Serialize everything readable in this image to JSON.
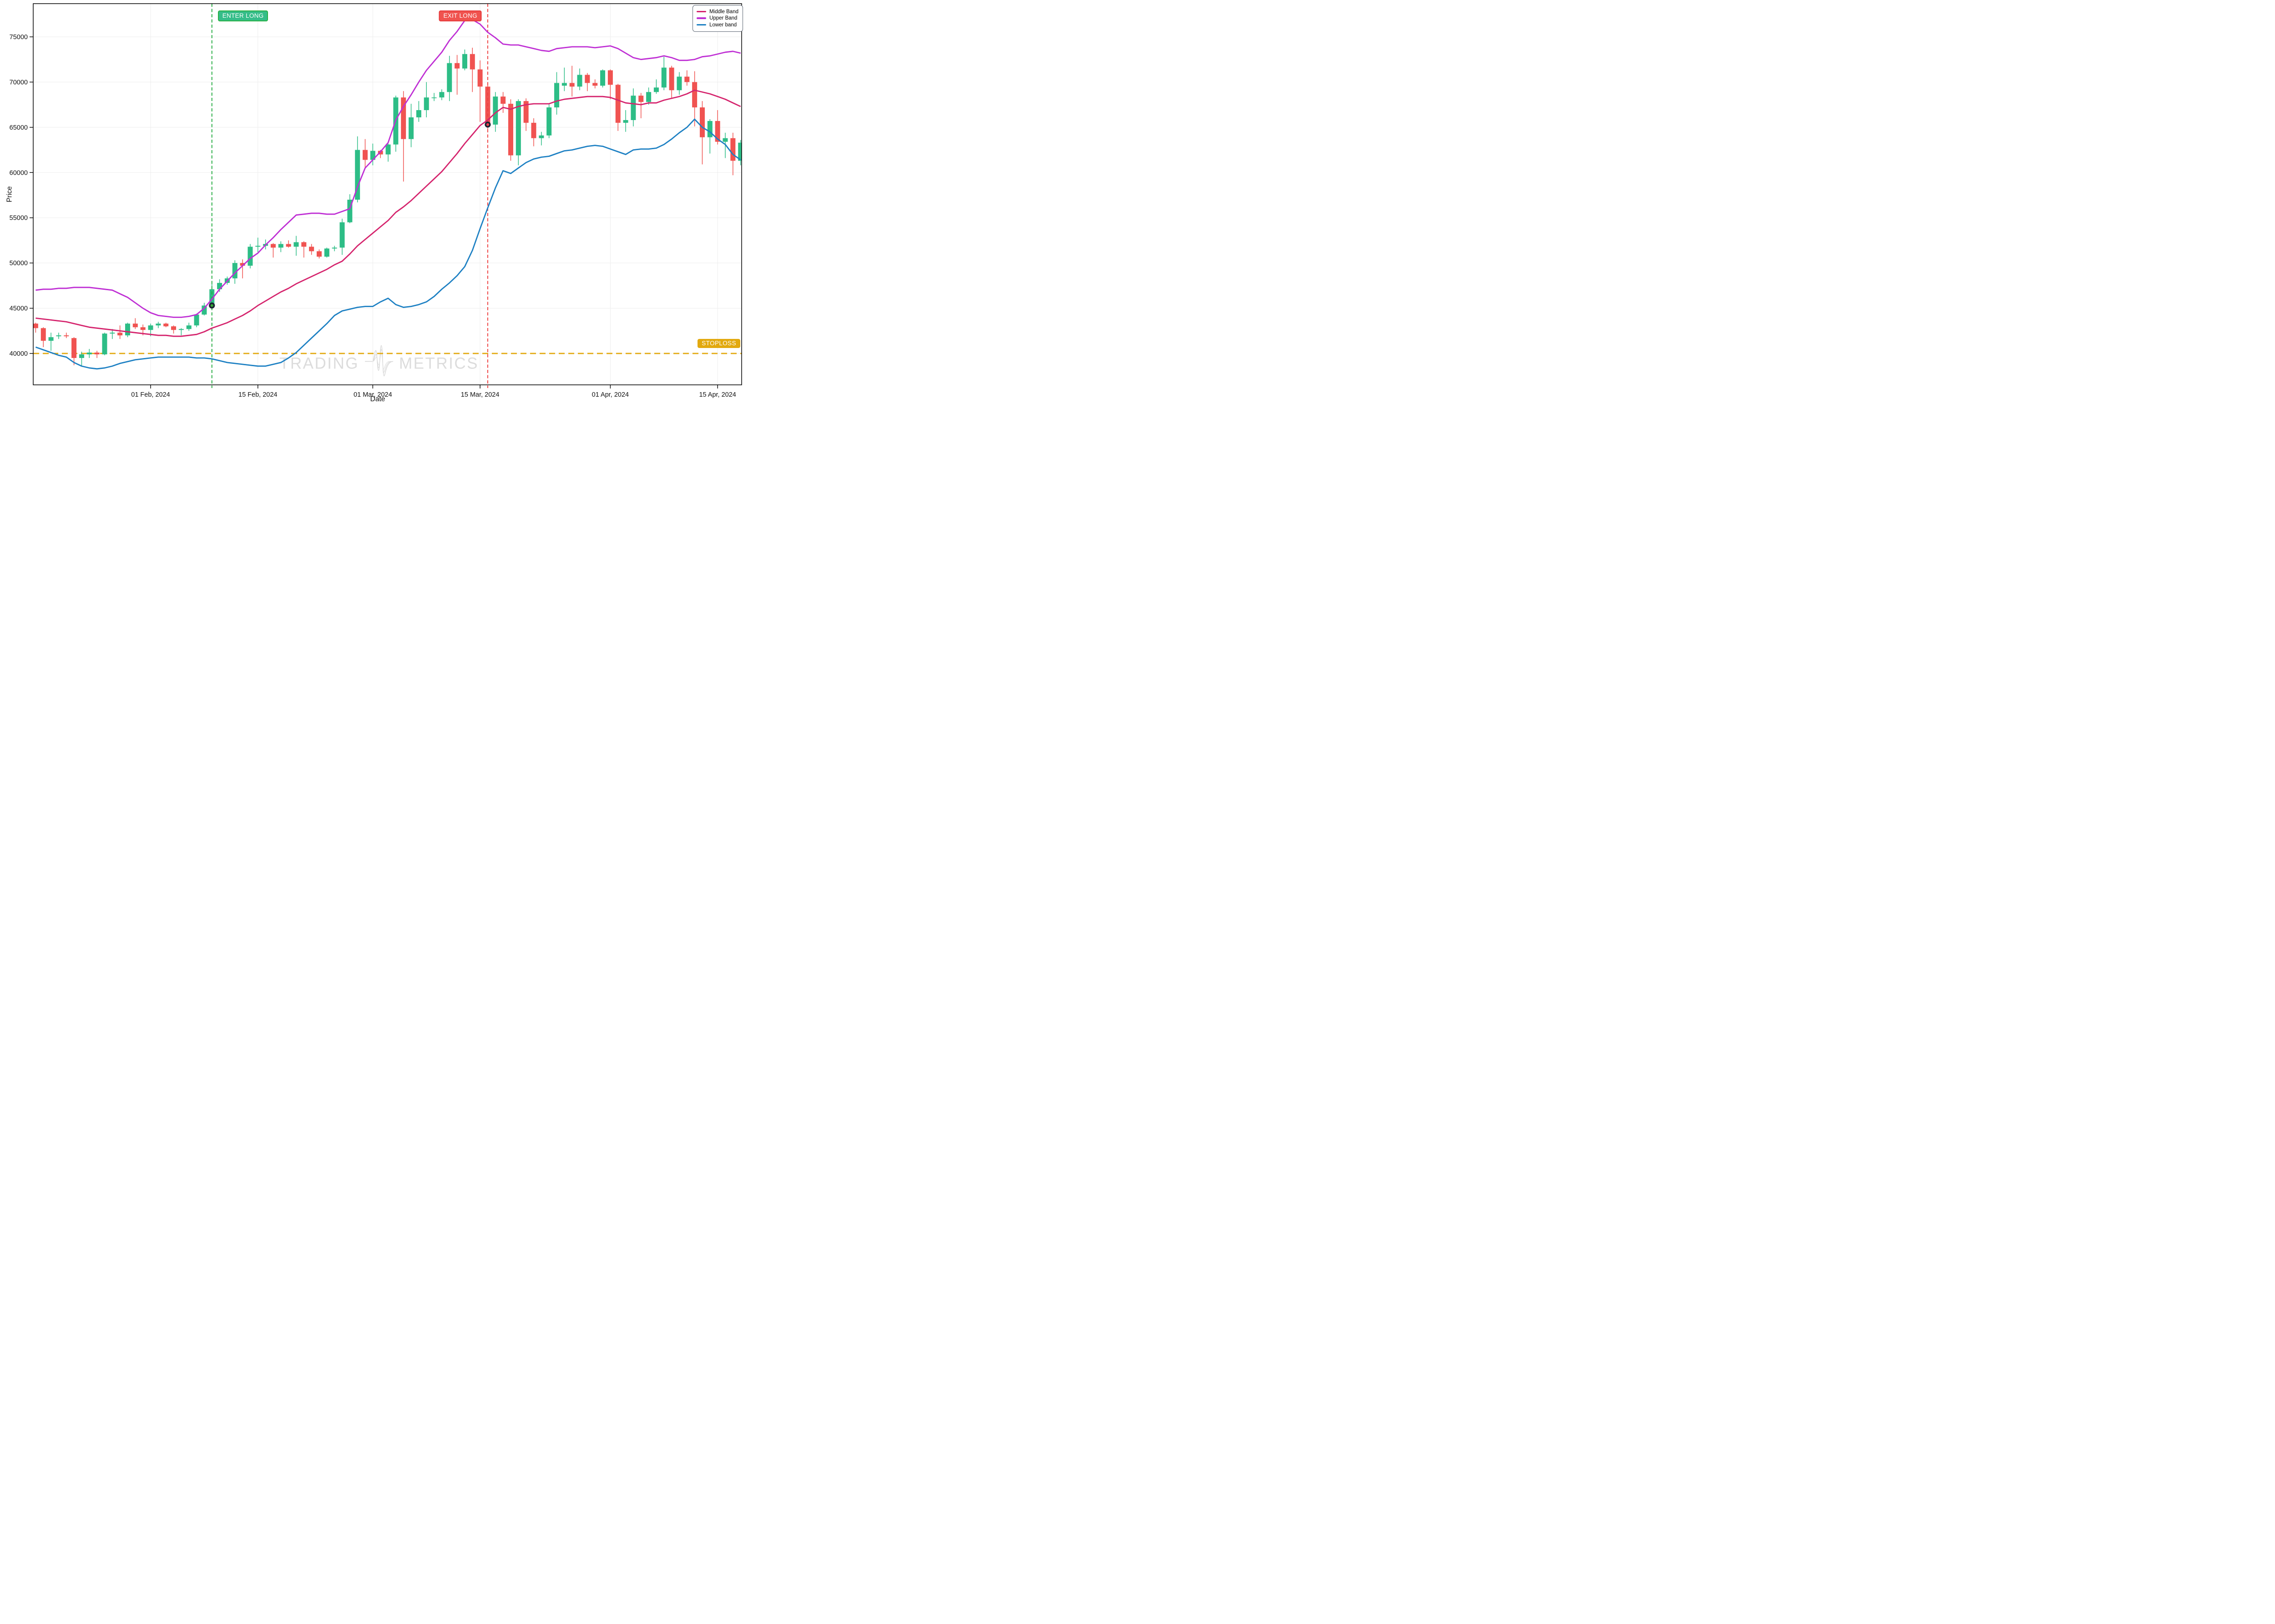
{
  "colors": {
    "candle_up": "#2dbd86",
    "candle_down": "#f05351",
    "middle_band": "#d5246d",
    "upper_band": "#bf2fd4",
    "lower_band": "#1d80c3",
    "enter_line": "#22aa3f",
    "exit_line": "#ee4040",
    "stoploss_line": "#e2a90f",
    "marker_ring": "#1b2433",
    "enter_marker_fill": "#37a835",
    "exit_marker_fill": "#f2414d",
    "grid": "#ededed",
    "axis": "#000000",
    "watermark": "#dcdcdc"
  },
  "legend": {
    "items": [
      {
        "label": "Middle Band",
        "color": "#d5246d"
      },
      {
        "label": "Upper Band",
        "color": "#bf2fd4"
      },
      {
        "label": "Lower band",
        "color": "#1d80c3"
      }
    ]
  },
  "annotations": {
    "enter_label": "ENTER LONG",
    "exit_label": "EXIT LONG",
    "stoploss_label": "STOPLOSS",
    "enter_date": "2024-02-09",
    "exit_date": "2024-03-16",
    "enter_price": 45300,
    "exit_price": 65300,
    "stoploss_price": 40000
  },
  "axes": {
    "y_label": "Price",
    "x_label": "Date",
    "y_ticks": [
      40000,
      45000,
      50000,
      55000,
      60000,
      65000,
      70000,
      75000
    ],
    "x_ticks": [
      {
        "date": "2024-02-01",
        "label": "01 Feb, 2024"
      },
      {
        "date": "2024-02-15",
        "label": "15 Feb, 2024"
      },
      {
        "date": "2024-03-01",
        "label": "01 Mar, 2024"
      },
      {
        "date": "2024-03-15",
        "label": "15 Mar, 2024"
      },
      {
        "date": "2024-04-01",
        "label": "01 Apr, 2024"
      },
      {
        "date": "2024-04-15",
        "label": "15 Apr, 2024"
      }
    ]
  },
  "watermark": {
    "left": "TRADING",
    "right": "METRICS"
  },
  "chart_data": {
    "type": "candlestick",
    "interval": "1d",
    "xrange": [
      "2024-01-17",
      "2024-04-18"
    ],
    "ylim": [
      37600,
      78700
    ],
    "candles": [
      [
        43300,
        43400,
        42300,
        42800
      ],
      [
        42800,
        42900,
        40700,
        41400
      ],
      [
        41400,
        42300,
        40300,
        41800
      ],
      [
        41900,
        42300,
        41600,
        42000
      ],
      [
        42000,
        42300,
        41700,
        41900
      ],
      [
        41700,
        41800,
        38700,
        39500
      ],
      [
        39500,
        40200,
        38600,
        39900
      ],
      [
        39900,
        40500,
        39500,
        40100
      ],
      [
        40100,
        40300,
        39500,
        39900
      ],
      [
        39900,
        42300,
        39800,
        42200
      ],
      [
        42200,
        42700,
        41600,
        42300
      ],
      [
        42300,
        43100,
        41600,
        42000
      ],
      [
        42000,
        43400,
        41800,
        43300
      ],
      [
        43300,
        43900,
        42700,
        42900
      ],
      [
        42900,
        43200,
        42000,
        42600
      ],
      [
        42600,
        43300,
        41900,
        43100
      ],
      [
        43100,
        43500,
        42800,
        43300
      ],
      [
        43300,
        43400,
        42900,
        43000
      ],
      [
        43000,
        43100,
        42200,
        42600
      ],
      [
        42600,
        42800,
        42000,
        42700
      ],
      [
        42700,
        43400,
        42500,
        43100
      ],
      [
        43100,
        44400,
        42900,
        44300
      ],
      [
        44300,
        45600,
        44200,
        45300
      ],
      [
        45300,
        47700,
        45200,
        47100
      ],
      [
        47100,
        48200,
        46800,
        47800
      ],
      [
        47800,
        48500,
        47600,
        48300
      ],
      [
        48300,
        50300,
        47700,
        50000
      ],
      [
        50000,
        50400,
        48300,
        49700
      ],
      [
        49700,
        52100,
        49400,
        51800
      ],
      [
        51800,
        52800,
        51200,
        51900
      ],
      [
        51900,
        52600,
        51500,
        52100
      ],
      [
        52100,
        52200,
        50600,
        51700
      ],
      [
        51700,
        52400,
        51200,
        52100
      ],
      [
        52100,
        52500,
        51700,
        51800
      ],
      [
        51800,
        53000,
        50800,
        52300
      ],
      [
        52300,
        52400,
        50600,
        51800
      ],
      [
        51800,
        52100,
        50900,
        51300
      ],
      [
        51300,
        51500,
        50500,
        50700
      ],
      [
        50700,
        51700,
        50600,
        51600
      ],
      [
        51600,
        51900,
        51300,
        51700
      ],
      [
        51700,
        54900,
        50900,
        54500
      ],
      [
        54500,
        57600,
        54400,
        57000
      ],
      [
        57000,
        64000,
        56700,
        62500
      ],
      [
        62500,
        63700,
        60400,
        61400
      ],
      [
        61400,
        63200,
        60800,
        62400
      ],
      [
        62400,
        62500,
        61600,
        62000
      ],
      [
        62000,
        63200,
        61200,
        63100
      ],
      [
        63100,
        68500,
        62300,
        68300
      ],
      [
        68300,
        69000,
        59000,
        63700
      ],
      [
        63700,
        67600,
        62800,
        66100
      ],
      [
        66100,
        67900,
        65600,
        66900
      ],
      [
        66900,
        70000,
        66100,
        68300
      ],
      [
        68300,
        68800,
        67900,
        68300
      ],
      [
        68300,
        69200,
        68000,
        68900
      ],
      [
        68900,
        72900,
        67900,
        72100
      ],
      [
        72100,
        73000,
        68600,
        71500
      ],
      [
        71500,
        73600,
        71300,
        73100
      ],
      [
        73100,
        73800,
        68900,
        71400
      ],
      [
        71400,
        72400,
        65600,
        69500
      ],
      [
        69500,
        70000,
        64800,
        65300
      ],
      [
        65300,
        68900,
        64500,
        68400
      ],
      [
        68400,
        68900,
        66600,
        67600
      ],
      [
        67600,
        68100,
        61300,
        61900
      ],
      [
        61900,
        68100,
        60800,
        67900
      ],
      [
        67900,
        68200,
        64600,
        65500
      ],
      [
        65500,
        66000,
        62900,
        63800
      ],
      [
        63800,
        64500,
        63000,
        64100
      ],
      [
        64100,
        67600,
        63800,
        67200
      ],
      [
        67200,
        71100,
        66400,
        69900
      ],
      [
        69600,
        71600,
        69000,
        69900
      ],
      [
        69900,
        71800,
        68400,
        69500
      ],
      [
        69500,
        71500,
        69100,
        70800
      ],
      [
        70800,
        71000,
        69000,
        69900
      ],
      [
        69900,
        70300,
        69300,
        69600
      ],
      [
        69600,
        71400,
        69400,
        71300
      ],
      [
        71300,
        71400,
        68100,
        69700
      ],
      [
        69700,
        69800,
        64600,
        65500
      ],
      [
        65500,
        66900,
        64500,
        65800
      ],
      [
        65800,
        69300,
        65100,
        68500
      ],
      [
        68500,
        68800,
        66000,
        67800
      ],
      [
        67800,
        69400,
        67500,
        68900
      ],
      [
        68900,
        70300,
        68700,
        69400
      ],
      [
        69400,
        72800,
        69100,
        71600
      ],
      [
        71600,
        71800,
        68200,
        69100
      ],
      [
        69100,
        71100,
        68600,
        70600
      ],
      [
        70600,
        71300,
        69600,
        70000
      ],
      [
        70000,
        71200,
        65100,
        67200
      ],
      [
        67200,
        67900,
        60900,
        63900
      ],
      [
        63900,
        65900,
        62100,
        65700
      ],
      [
        65700,
        66900,
        63100,
        63400
      ],
      [
        63400,
        64400,
        61600,
        63800
      ],
      [
        63800,
        64400,
        59700,
        61300
      ],
      [
        61300,
        63600,
        60800,
        63300
      ]
    ],
    "bands": {
      "upper": [
        47000,
        47100,
        47100,
        47200,
        47200,
        47300,
        47300,
        47300,
        47200,
        47100,
        47000,
        46600,
        46200,
        45600,
        45000,
        44500,
        44200,
        44100,
        44000,
        44000,
        44100,
        44300,
        45000,
        46000,
        47100,
        48000,
        48900,
        49700,
        50500,
        51100,
        52000,
        52800,
        53700,
        54500,
        55300,
        55400,
        55500,
        55500,
        55400,
        55400,
        55700,
        56000,
        58400,
        60500,
        61400,
        62300,
        63300,
        65800,
        67300,
        68600,
        70000,
        71300,
        72300,
        73300,
        74600,
        75600,
        76800,
        76900,
        76400,
        75500,
        74900,
        74200,
        74100,
        74100,
        73900,
        73700,
        73500,
        73400,
        73700,
        73800,
        73900,
        73900,
        73900,
        73800,
        73900,
        74000,
        73700,
        73200,
        72700,
        72500,
        72600,
        72700,
        72900,
        72700,
        72400,
        72400,
        72500,
        72800,
        72900,
        73100,
        73300,
        73400,
        73200
      ],
      "middle": [
        43900,
        43800,
        43700,
        43600,
        43500,
        43300,
        43100,
        42900,
        42800,
        42700,
        42600,
        42500,
        42400,
        42300,
        42200,
        42100,
        42000,
        42000,
        41900,
        41900,
        42000,
        42100,
        42400,
        42800,
        43100,
        43400,
        43800,
        44200,
        44700,
        45300,
        45800,
        46300,
        46800,
        47200,
        47700,
        48100,
        48500,
        48900,
        49300,
        49800,
        50200,
        51000,
        51900,
        52600,
        53300,
        54000,
        54700,
        55600,
        56200,
        56900,
        57700,
        58500,
        59300,
        60100,
        61100,
        62100,
        63200,
        64200,
        65200,
        65800,
        66600,
        67200,
        67000,
        67300,
        67500,
        67600,
        67600,
        67600,
        67900,
        68100,
        68200,
        68300,
        68400,
        68400,
        68400,
        68300,
        68000,
        67700,
        67600,
        67500,
        67700,
        67700,
        68000,
        68200,
        68400,
        68700,
        69100,
        68900,
        68700,
        68400,
        68100,
        67700,
        67300
      ],
      "lower": [
        40700,
        40400,
        40100,
        39800,
        39600,
        39000,
        38600,
        38400,
        38300,
        38400,
        38600,
        38900,
        39100,
        39300,
        39400,
        39500,
        39600,
        39600,
        39600,
        39600,
        39600,
        39500,
        39500,
        39400,
        39200,
        39000,
        38900,
        38800,
        38700,
        38600,
        38600,
        38800,
        39000,
        39500,
        40100,
        40900,
        41700,
        42500,
        43300,
        44200,
        44700,
        44900,
        45100,
        45200,
        45200,
        45700,
        46100,
        45400,
        45100,
        45200,
        45400,
        45700,
        46300,
        47100,
        47800,
        48600,
        49600,
        51400,
        53800,
        56100,
        58300,
        60200,
        59900,
        60500,
        61100,
        61500,
        61700,
        61800,
        62100,
        62400,
        62500,
        62700,
        62900,
        63000,
        62900,
        62600,
        62300,
        62000,
        62500,
        62600,
        62600,
        62700,
        63100,
        63700,
        64400,
        65000,
        65900,
        65000,
        64500,
        63700,
        63100,
        62000,
        61400
      ]
    }
  }
}
